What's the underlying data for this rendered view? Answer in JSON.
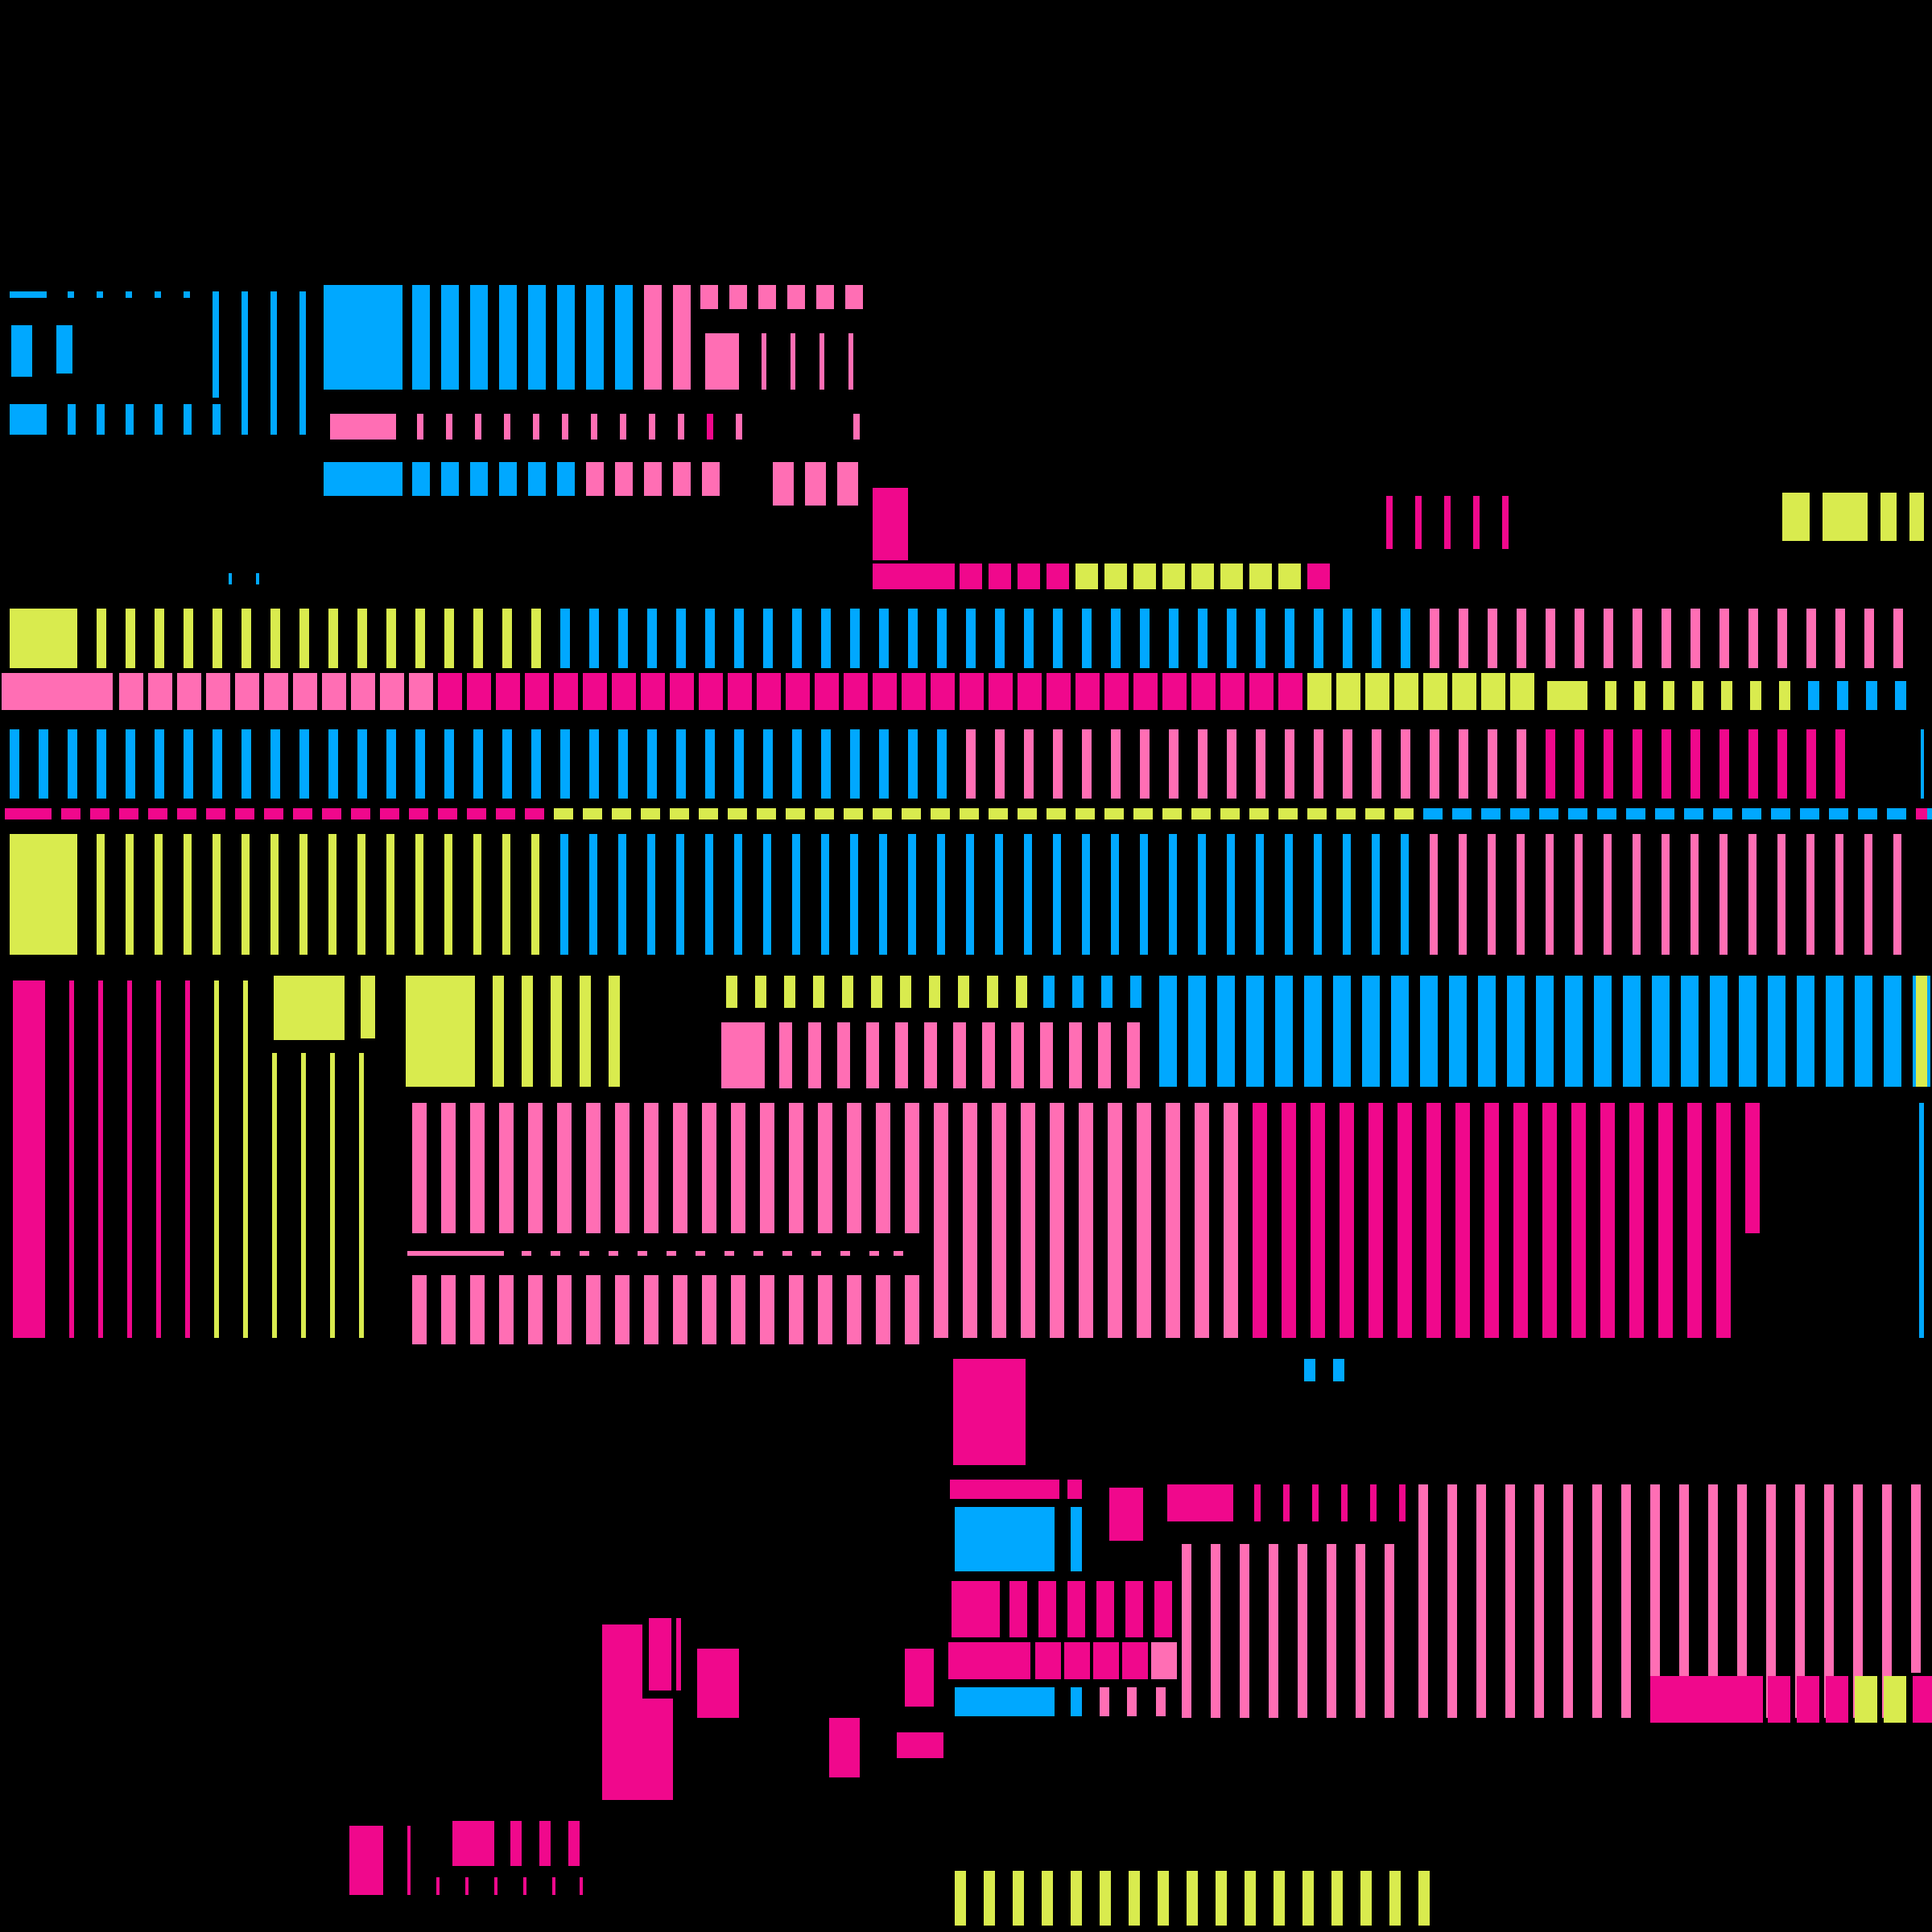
{
  "palette": {
    "background": "#000000",
    "blue": "#00A8FF",
    "lightpink": "#FF6EB4",
    "magenta": "#F0088C",
    "lime": "#D9EB4E"
  }
}
